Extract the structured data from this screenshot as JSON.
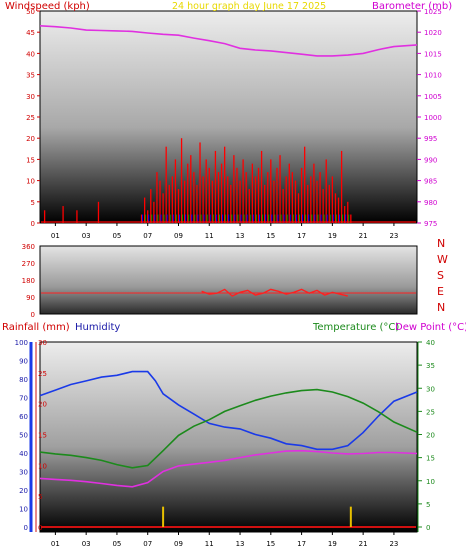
{
  "header": {
    "left": "Windspeed (kph)",
    "center": "24 hour graph day   June 17 2025",
    "right": "Barometer (mb)"
  },
  "colors": {
    "wind": "#ff0000",
    "gust": "#00a000",
    "avg": "#0000ff",
    "baro": "#e030e0",
    "dir": "#ff2020",
    "rain": "#d01010",
    "rain_bar": "#e8c000",
    "humidity": "#1a3ae8",
    "temp": "#1c8a1c",
    "dew": "#e030e0",
    "compass": "#d00000"
  },
  "chart_data": [
    {
      "type": "line",
      "title": "Windspeed (kph) / Barometer (mb)",
      "x_ticks": [
        "01",
        "03",
        "05",
        "07",
        "09",
        "11",
        "13",
        "15",
        "17",
        "19",
        "21",
        "23"
      ],
      "y_left_ticks": [
        "0",
        "5",
        "10",
        "15",
        "20",
        "25",
        "30",
        "35",
        "40",
        "45",
        "50"
      ],
      "y_right_ticks": [
        "975",
        "980",
        "985",
        "990",
        "995",
        "1000",
        "1005",
        "1010",
        "1015",
        "1020",
        "1025"
      ],
      "ylim": [
        0,
        50
      ],
      "y2lim": [
        975,
        1025
      ],
      "xlim": [
        0,
        24.5
      ],
      "series": [
        {
          "name": "Barometer (mb)",
          "axis": "right",
          "x": [
            0,
            1,
            2,
            3,
            4,
            5,
            6,
            7,
            8,
            9,
            10,
            11,
            12,
            13,
            14,
            15,
            16,
            17,
            18,
            19,
            20,
            21,
            22,
            23,
            24.5
          ],
          "values": [
            1021.5,
            1021.3,
            1021.0,
            1020.5,
            1020.4,
            1020.3,
            1020.2,
            1019.8,
            1019.5,
            1019.3,
            1018.6,
            1018.0,
            1017.3,
            1016.2,
            1015.8,
            1015.6,
            1015.2,
            1014.8,
            1014.4,
            1014.4,
            1014.6,
            1015.0,
            1015.9,
            1016.6,
            1017.0
          ]
        },
        {
          "name": "Windspeed",
          "axis": "left",
          "x": [
            0.3,
            0.4,
            1.5,
            1.7,
            2.4,
            2.6,
            3.8,
            4.0,
            6.6,
            6.8,
            7.0,
            7.2,
            7.4,
            7.6,
            7.8,
            8.0,
            8.2,
            8.4,
            8.6,
            8.8,
            9.0,
            9.2,
            9.4,
            9.6,
            9.8,
            10.0,
            10.2,
            10.4,
            10.6,
            10.8,
            11.0,
            11.2,
            11.4,
            11.6,
            11.8,
            12.0,
            12.2,
            12.4,
            12.6,
            12.8,
            13.0,
            13.2,
            13.4,
            13.6,
            13.8,
            14.0,
            14.2,
            14.4,
            14.6,
            14.8,
            15.0,
            15.2,
            15.4,
            15.6,
            15.8,
            16.0,
            16.2,
            16.4,
            16.6,
            16.8,
            17.0,
            17.2,
            17.4,
            17.6,
            17.8,
            18.0,
            18.2,
            18.4,
            18.6,
            18.8,
            19.0,
            19.2,
            19.4,
            19.6,
            19.8,
            20.0,
            20.2
          ],
          "values": [
            3,
            0,
            4,
            0,
            3,
            0,
            5,
            0,
            2,
            6,
            3,
            8,
            5,
            12,
            10,
            7,
            18,
            9,
            11,
            15,
            8,
            20,
            10,
            14,
            16,
            12,
            9,
            19,
            11,
            15,
            13,
            10,
            17,
            12,
            14,
            18,
            11,
            9,
            16,
            13,
            10,
            15,
            12,
            8,
            14,
            11,
            13,
            17,
            9,
            12,
            15,
            10,
            13,
            16,
            8,
            11,
            14,
            12,
            10,
            7,
            13,
            18,
            9,
            11,
            14,
            10,
            12,
            8,
            15,
            9,
            11,
            7,
            6,
            17,
            4,
            5,
            2
          ]
        },
        {
          "name": "Wind direction",
          "x_ticks_shared": true,
          "y_ticks": [
            "0",
            "45",
            "90",
            "135",
            "180",
            "225",
            "270",
            "315",
            "360"
          ],
          "x": [
            10.5,
            11,
            11.5,
            12,
            12.5,
            13,
            13.5,
            14,
            14.5,
            15,
            15.5,
            16,
            16.5,
            17,
            17.5,
            18,
            18.5,
            19,
            19.5,
            20
          ],
          "values": [
            120,
            105,
            110,
            130,
            95,
            115,
            125,
            100,
            110,
            130,
            120,
            105,
            115,
            130,
            110,
            125,
            100,
            115,
            105,
            95
          ]
        }
      ]
    },
    {
      "type": "line",
      "title": "Rainfall (mm) Humidity Temperature (°C) Dew Point (°C)",
      "x_ticks": [
        "01",
        "03",
        "05",
        "07",
        "09",
        "11",
        "13",
        "15",
        "17",
        "19",
        "21",
        "23"
      ],
      "xlim": [
        0,
        24.5
      ],
      "left_labels": [
        "Rainfall (mm)",
        "Humidity"
      ],
      "right_labels": [
        "Temperature (°C)",
        "Dew Point (°C)"
      ],
      "y_humidity_ticks": [
        "0",
        "10",
        "20",
        "30",
        "40",
        "50",
        "60",
        "70",
        "80",
        "90",
        "100"
      ],
      "y_rain_ticks": [
        "0",
        "5",
        "10",
        "15",
        "20",
        "25",
        "30"
      ],
      "y_temp_ticks": [
        "0",
        "5",
        "10",
        "15",
        "20",
        "25",
        "30",
        "35",
        "40"
      ],
      "series": [
        {
          "name": "Humidity",
          "axis": "humidity",
          "x": [
            0,
            1,
            2,
            3,
            4,
            5,
            6,
            7,
            7.5,
            8,
            9,
            10,
            11,
            12,
            13,
            14,
            15,
            16,
            17,
            18,
            19,
            20,
            21,
            22,
            23,
            24.5
          ],
          "values": [
            71,
            74,
            77,
            79,
            81,
            82,
            84,
            84,
            79,
            72,
            66,
            61,
            56,
            54,
            53,
            50,
            48,
            45,
            44,
            42,
            42,
            44,
            51,
            60,
            68,
            73
          ]
        },
        {
          "name": "Temperature",
          "axis": "temp",
          "x": [
            0,
            1,
            2,
            3,
            4,
            5,
            6,
            7,
            8,
            9,
            10,
            11,
            12,
            13,
            14,
            15,
            16,
            17,
            18,
            19,
            20,
            21,
            22,
            23,
            24.5
          ],
          "values": [
            16.2,
            15.8,
            15.5,
            15.0,
            14.4,
            13.5,
            12.8,
            13.3,
            16.5,
            19.8,
            21.8,
            23.2,
            25.0,
            26.2,
            27.4,
            28.3,
            29.0,
            29.5,
            29.7,
            29.2,
            28.2,
            26.8,
            24.9,
            22.7,
            20.5
          ]
        },
        {
          "name": "Dew Point",
          "axis": "temp",
          "x": [
            0,
            1,
            2,
            3,
            4,
            5,
            6,
            7,
            8,
            9,
            10,
            11,
            12,
            13,
            14,
            15,
            16,
            17,
            18,
            19,
            20,
            21,
            22,
            23,
            24.5
          ],
          "values": [
            10.5,
            10.3,
            10.1,
            9.8,
            9.4,
            9.0,
            8.7,
            9.6,
            12.0,
            13.2,
            13.6,
            14.0,
            14.4,
            15.0,
            15.6,
            16.0,
            16.4,
            16.5,
            16.3,
            16.0,
            15.8,
            15.9,
            16.1,
            16.1,
            15.9
          ]
        },
        {
          "name": "Rainfall",
          "axis": "rain",
          "x": [
            0,
            24.5
          ],
          "values": [
            0,
            0
          ]
        },
        {
          "name": "Rain events",
          "axis": "rain",
          "x": [
            8,
            20.2
          ],
          "values": [
            3.3,
            3.3
          ]
        }
      ]
    }
  ],
  "compass": [
    "N",
    "W",
    "S",
    "E",
    "N"
  ]
}
